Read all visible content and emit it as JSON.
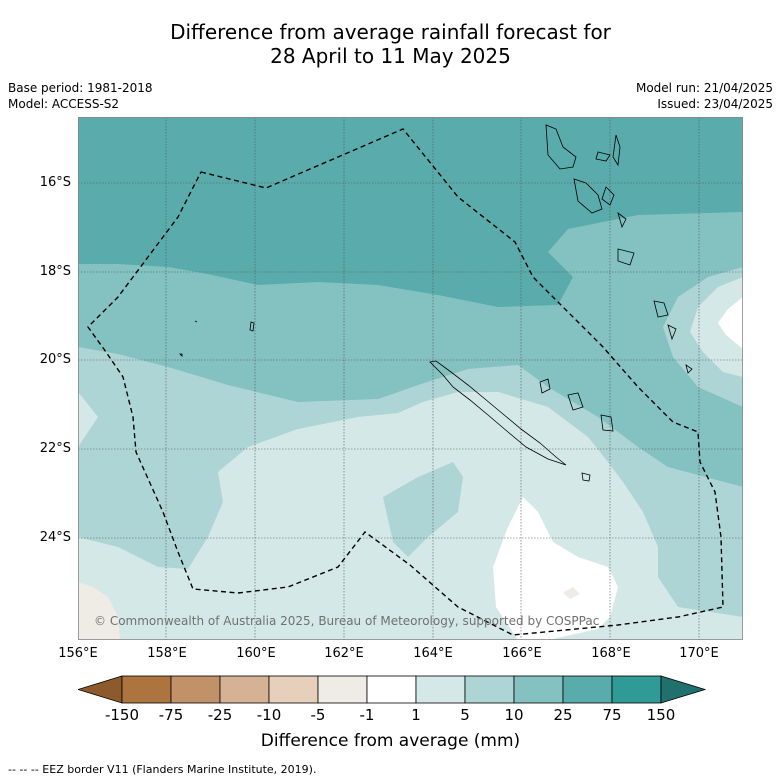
{
  "title_line1": "Difference from average rainfall forecast for",
  "title_line2": "28 April to 11 May 2025",
  "base_period": "Base period: 1981-2018",
  "model": "Model: ACCESS-S2",
  "model_run": "Model run: 21/04/2025",
  "issued": "Issued: 23/04/2025",
  "map": {
    "lon_range": [
      156,
      171
    ],
    "lat_range": [
      -14.6,
      -26.4
    ],
    "lat_labels": [
      "16°S",
      "18°S",
      "20°S",
      "22°S",
      "24°S"
    ],
    "lon_labels": [
      "156°E",
      "158°E",
      "160°E",
      "162°E",
      "164°E",
      "166°E",
      "168°E",
      "170°E"
    ],
    "copyright": "© Commonwealth of Australia 2025, Bureau of Meteorology, supported by COSPPac"
  },
  "colorbar": {
    "labels": [
      "-150",
      "-75",
      "-25",
      "-10",
      "-5",
      "-1",
      "1",
      "5",
      "10",
      "25",
      "75",
      "150"
    ],
    "colors": [
      "#8c5a2b",
      "#ad7440",
      "#c19267",
      "#d5b294",
      "#e6d0bb",
      "#efece6",
      "#ffffff",
      "#d5e8e8",
      "#aed5d5",
      "#84c1c1",
      "#5aabab",
      "#2f9a96",
      "#20706d"
    ],
    "title": "Difference from average (mm)"
  },
  "footnote": "--  --  -- EEZ border V11 (Flanders Marine Institute, 2019)."
}
